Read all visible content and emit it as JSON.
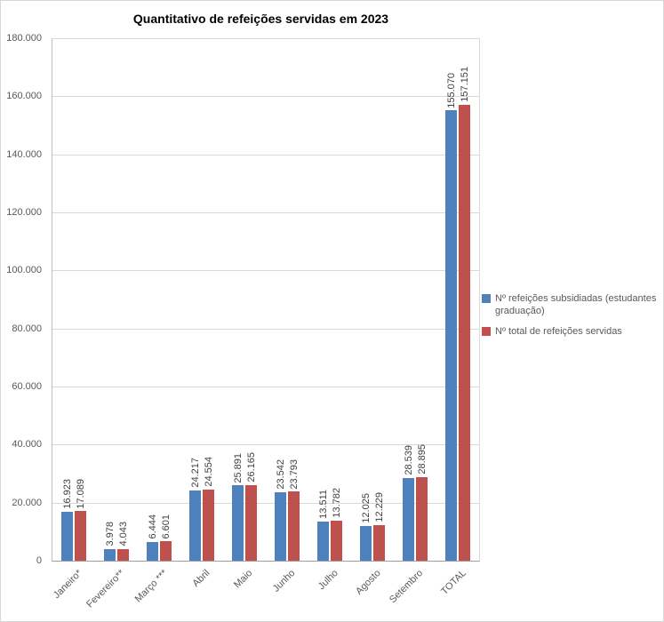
{
  "chart_data": {
    "type": "bar",
    "title": "Quantitativo de refeições servidas em 2023",
    "categories": [
      "Janeiro*",
      "Fevereiro**",
      "Março ***",
      "Abril",
      "Maio",
      "Junho",
      "Julho",
      "Agosto",
      "Setembro",
      "TOTAL"
    ],
    "series": [
      {
        "name": "Nº refeições subsidiadas (estudantes graduação)",
        "color": "#4F81BD",
        "values": [
          16923,
          3978,
          6444,
          24217,
          25891,
          23542,
          13511,
          12025,
          28539,
          155070
        ],
        "labels": [
          "16.923",
          "3.978",
          "6.444",
          "24.217",
          "25.891",
          "23.542",
          "13.511",
          "12.025",
          "28.539",
          "155.070"
        ]
      },
      {
        "name": "Nº total de refeições servidas",
        "color": "#C0504D",
        "values": [
          17089,
          4043,
          6601,
          24554,
          26165,
          23793,
          13782,
          12229,
          28895,
          157151
        ],
        "labels": [
          "17.089",
          "4.043",
          "6.601",
          "24.554",
          "26.165",
          "23.793",
          "13.782",
          "12.229",
          "28.895",
          "157.151"
        ]
      }
    ],
    "ylim": [
      0,
      180000
    ],
    "ytick_step": 20000,
    "ytick_labels": [
      "0",
      "20.000",
      "40.000",
      "60.000",
      "80.000",
      "100.000",
      "120.000",
      "140.000",
      "160.000",
      "180.000"
    ],
    "grid": true,
    "legend_position": "right"
  }
}
